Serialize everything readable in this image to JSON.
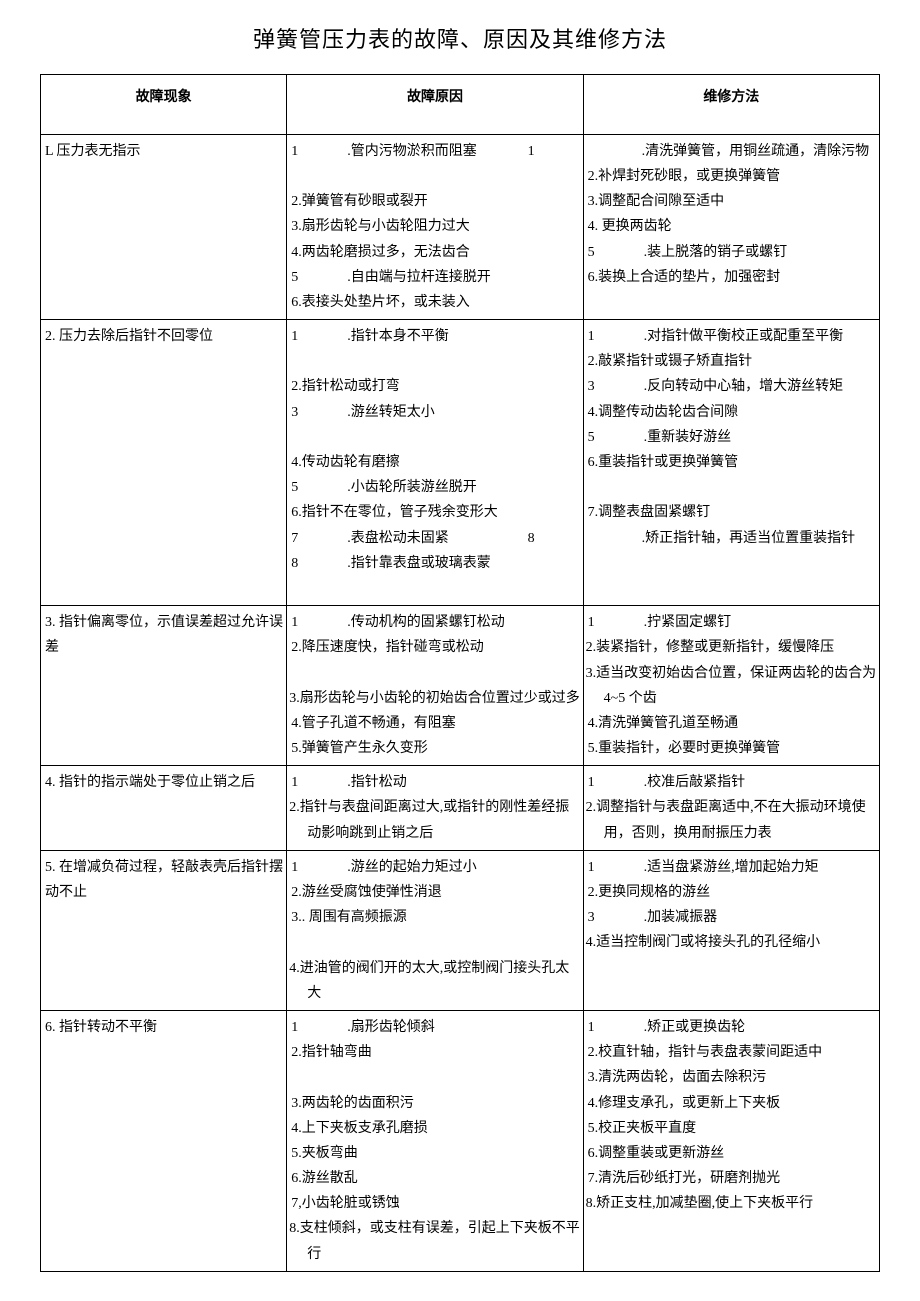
{
  "title": "弹簧管压力表的故障、原因及其维修方法",
  "columns": [
    "故障现象",
    "故障原因",
    "维修方法"
  ],
  "rows": [
    {
      "symptom": "L 压力表无指示",
      "cause": [
        {
          "n": "1",
          "wide": true,
          "t": ".管内污物淤积而阻塞"
        },
        {
          "n": "",
          "t": ""
        },
        {
          "n": "2.",
          "t": "弹簧管有砂眼或裂开"
        },
        {
          "n": "3.",
          "t": "扇形齿轮与小齿轮阻力过大"
        },
        {
          "n": "4.",
          "t": "两齿轮磨损过多，无法齿合"
        },
        {
          "n": "5",
          "wide": true,
          "t": ".自由端与拉杆连接脱开"
        },
        {
          "n": "6.",
          "t": "表接头处垫片坏，或未装入"
        }
      ],
      "fix": [
        {
          "n": "1",
          "wide": true,
          "t": ".清洗弹簧管，用铜丝疏通，清除污物",
          "hang": true
        },
        {
          "n": "2.",
          "t": "补焊封死砂眼，或更换弹簧管"
        },
        {
          "n": "3.",
          "t": "调整配合间隙至适中"
        },
        {
          "n": "4.",
          "t": " 更换两齿轮"
        },
        {
          "n": "5",
          "wide": true,
          "t": ".装上脱落的销子或螺钉"
        },
        {
          "n": "6.",
          "t": "装换上合适的垫片，加强密封"
        }
      ]
    },
    {
      "symptom": "2. 压力去除后指针不回零位",
      "cause": [
        {
          "n": "1",
          "wide": true,
          "t": ".指针本身不平衡"
        },
        {
          "n": "",
          "t": ""
        },
        {
          "n": "2.",
          "t": "指针松动或打弯"
        },
        {
          "n": "3",
          "wide": true,
          "t": ".游丝转矩太小"
        },
        {
          "n": "",
          "t": ""
        },
        {
          "n": "4.",
          "t": "传动齿轮有磨擦"
        },
        {
          "n": "5",
          "wide": true,
          "t": ".小齿轮所装游丝脱开"
        },
        {
          "n": "6.",
          "t": "指针不在零位，管子残余变形大"
        },
        {
          "n": "7",
          "wide": true,
          "t": ".表盘松动未固紧"
        },
        {
          "n": "8",
          "wide": true,
          "t": ".指针靠表盘或玻璃表蒙"
        },
        {
          "n": "",
          "t": ""
        }
      ],
      "fix": [
        {
          "n": "1",
          "wide": true,
          "t": ".对指针做平衡校正或配重至平衡"
        },
        {
          "n": "2.",
          "t": "敲紧指针或镊子矫直指针"
        },
        {
          "n": "3",
          "wide": true,
          "t": ".反向转动中心轴，增大游丝转矩"
        },
        {
          "n": "4.",
          "t": "调整传动齿轮齿合间隙"
        },
        {
          "n": "5",
          "wide": true,
          "t": ".重新装好游丝"
        },
        {
          "n": "6.",
          "t": "重装指针或更换弹簧管"
        },
        {
          "n": "",
          "t": ""
        },
        {
          "n": "7.",
          "t": "调整表盘固紧螺钉"
        },
        {
          "n": "8",
          "wide": true,
          "t": ".矫正指针轴，再适当位置重装指针",
          "hang": true
        },
        {
          "n": "",
          "t": ""
        }
      ]
    },
    {
      "symptom": "3. 指针偏离零位，示值误差超过允许误差",
      "cause": [
        {
          "n": "1",
          "wide": true,
          "t": ".传动机构的固紧螺钉松动"
        },
        {
          "n": "2.",
          "t": "降压速度快，指针碰弯或松动"
        },
        {
          "n": "",
          "t": ""
        },
        {
          "n": "3.",
          "t": "扇形齿轮与小齿轮的初始齿合位置过少或过多",
          "hang": true
        },
        {
          "n": "4.",
          "t": "管子孔道不畅通，有阻塞"
        },
        {
          "n": "5.",
          "t": "弹簧管产生永久变形"
        }
      ],
      "fix": [
        {
          "n": "1",
          "wide": true,
          "t": ".拧紧固定螺钉"
        },
        {
          "n": "2.",
          "t": "装紧指针，修整或更新指针，缓慢降压",
          "hang": true
        },
        {
          "n": "3.",
          "t": "适当改变初始齿合位置，保证两齿轮的齿合为 4~5 个齿",
          "hang": true
        },
        {
          "n": "4.",
          "t": "清洗弹簧管孔道至畅通"
        },
        {
          "n": "5.",
          "t": "重装指针，必要时更换弹簧管"
        }
      ]
    },
    {
      "symptom": "4. 指针的指示端处于零位止销之后",
      "cause": [
        {
          "n": "1",
          "wide": true,
          "t": ".指针松动"
        },
        {
          "n": "2.",
          "t": "指针与表盘间距离过大,或指针的刚性差经振动影响跳到止销之后",
          "hang": true
        }
      ],
      "fix": [
        {
          "n": "1",
          "wide": true,
          "t": ".校准后敲紧指针"
        },
        {
          "n": "2.",
          "t": "调整指针与表盘距离适中,不在大振动环境使用，否则，换用耐振压力表",
          "hang": true
        }
      ]
    },
    {
      "symptom": "5. 在增减负荷过程，轻敲表壳后指针摆动不止",
      "cause": [
        {
          "n": "1",
          "wide": true,
          "t": ".游丝的起始力矩过小"
        },
        {
          "n": "2.",
          "t": "游丝受腐蚀使弹性消退"
        },
        {
          "n": "3..",
          "t": " 周围有高频振源"
        },
        {
          "n": "",
          "t": ""
        },
        {
          "n": "4.",
          "t": "进油管的阀们开的太大,或控制阀门接头孔太大",
          "hang": true
        }
      ],
      "fix": [
        {
          "n": "1",
          "wide": true,
          "t": ".适当盘紧游丝,增加起始力矩"
        },
        {
          "n": "2.",
          "t": "更换同规格的游丝"
        },
        {
          "n": "3",
          "wide": true,
          "t": ".加装减振器"
        },
        {
          "n": "4.",
          "t": "适当控制阀门或将接头孔的孔径缩小",
          "hang": true
        }
      ]
    },
    {
      "symptom": "6. 指针转动不平衡",
      "cause": [
        {
          "n": "1",
          "wide": true,
          "t": ".扇形齿轮倾斜"
        },
        {
          "n": "2.",
          "t": "指针轴弯曲"
        },
        {
          "n": "",
          "t": ""
        },
        {
          "n": "3.",
          "t": "两齿轮的齿面积污"
        },
        {
          "n": "4.",
          "t": "上下夹板支承孔磨损"
        },
        {
          "n": "5.",
          "t": "夹板弯曲"
        },
        {
          "n": "6.",
          "t": "游丝散乱"
        },
        {
          "n": "7,",
          "t": "小齿轮脏或锈蚀"
        },
        {
          "n": "8.",
          "t": "支柱倾斜，或支柱有误差，引起上下夹板不平行",
          "hang": true
        }
      ],
      "fix": [
        {
          "n": "1",
          "wide": true,
          "t": ".矫正或更换齿轮"
        },
        {
          "n": "2.",
          "t": "校直针轴，指针与表盘表蒙间距适中"
        },
        {
          "n": "3.",
          "t": "清洗两齿轮，齿面去除积污"
        },
        {
          "n": "4.",
          "t": "修理支承孔，或更新上下夹板"
        },
        {
          "n": "5.",
          "t": "校正夹板平直度"
        },
        {
          "n": "6.",
          "t": "调整重装或更新游丝"
        },
        {
          "n": "7.",
          "t": "清洗后砂纸打光，研磨剂抛光"
        },
        {
          "n": "8.",
          "t": "矫正支柱,加减垫圈,使上下夹板平行",
          "hang": true
        }
      ]
    }
  ]
}
